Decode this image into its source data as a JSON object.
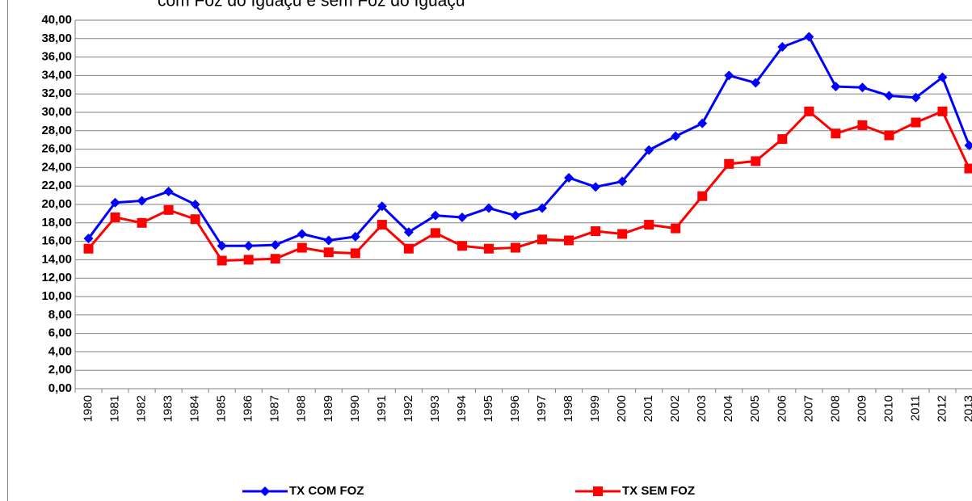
{
  "chart_data": {
    "type": "line",
    "title": "com Foz do Iguaçu e sem Foz do Iguaçu",
    "categories": [
      "1980",
      "1981",
      "1982",
      "1983",
      "1984",
      "1985",
      "1986",
      "1987",
      "1988",
      "1989",
      "1990",
      "1991",
      "1992",
      "1993",
      "1994",
      "1995",
      "1996",
      "1997",
      "1998",
      "1999",
      "2000",
      "2001",
      "2002",
      "2003",
      "2004",
      "2005",
      "2006",
      "2007",
      "2008",
      "2009",
      "2010",
      "2011",
      "2012",
      "2013"
    ],
    "series": [
      {
        "name": "TX COM FOZ",
        "color": "#0000ff",
        "marker": "diamond",
        "values": [
          16.3,
          20.2,
          20.4,
          21.4,
          20.0,
          15.5,
          15.5,
          15.6,
          16.8,
          16.1,
          16.5,
          19.8,
          17.0,
          18.8,
          18.6,
          19.6,
          18.8,
          19.6,
          22.9,
          21.9,
          22.5,
          25.9,
          27.4,
          28.8,
          34.0,
          33.2,
          37.1,
          38.2,
          32.8,
          32.7,
          31.8,
          31.6,
          33.8,
          26.4
        ]
      },
      {
        "name": "TX SEM FOZ",
        "color": "#ff0000",
        "marker": "square",
        "values": [
          15.2,
          18.6,
          18.0,
          19.4,
          18.4,
          13.9,
          14.0,
          14.1,
          15.3,
          14.8,
          14.7,
          17.8,
          15.2,
          16.9,
          15.5,
          15.2,
          15.3,
          16.2,
          16.1,
          17.1,
          16.8,
          17.8,
          17.4,
          20.9,
          24.4,
          24.7,
          27.1,
          30.1,
          27.7,
          28.6,
          27.5,
          28.9,
          30.1,
          23.9
        ]
      }
    ],
    "ylim": [
      0,
      40
    ],
    "yticks": [
      {
        "value": 0,
        "label": "0,00"
      },
      {
        "value": 2,
        "label": "2,00"
      },
      {
        "value": 4,
        "label": "4,00"
      },
      {
        "value": 6,
        "label": "6,00"
      },
      {
        "value": 8,
        "label": "8,00"
      },
      {
        "value": 10,
        "label": "10,00"
      },
      {
        "value": 12,
        "label": "12,00"
      },
      {
        "value": 14,
        "label": "14,00"
      },
      {
        "value": 16,
        "label": "16,00"
      },
      {
        "value": 18,
        "label": "18,00"
      },
      {
        "value": 20,
        "label": "20,00"
      },
      {
        "value": 22,
        "label": "22,00"
      },
      {
        "value": 24,
        "label": "24,00"
      },
      {
        "value": 26,
        "label": "26,00"
      },
      {
        "value": 28,
        "label": "28,00"
      },
      {
        "value": 30,
        "label": "30,00"
      },
      {
        "value": 32,
        "label": "32,00"
      },
      {
        "value": 34,
        "label": "34,00"
      },
      {
        "value": 36,
        "label": "36,00"
      },
      {
        "value": 38,
        "label": "38,00"
      },
      {
        "value": 40,
        "label": "40,00"
      }
    ],
    "grid": true,
    "legend": "bottom"
  }
}
